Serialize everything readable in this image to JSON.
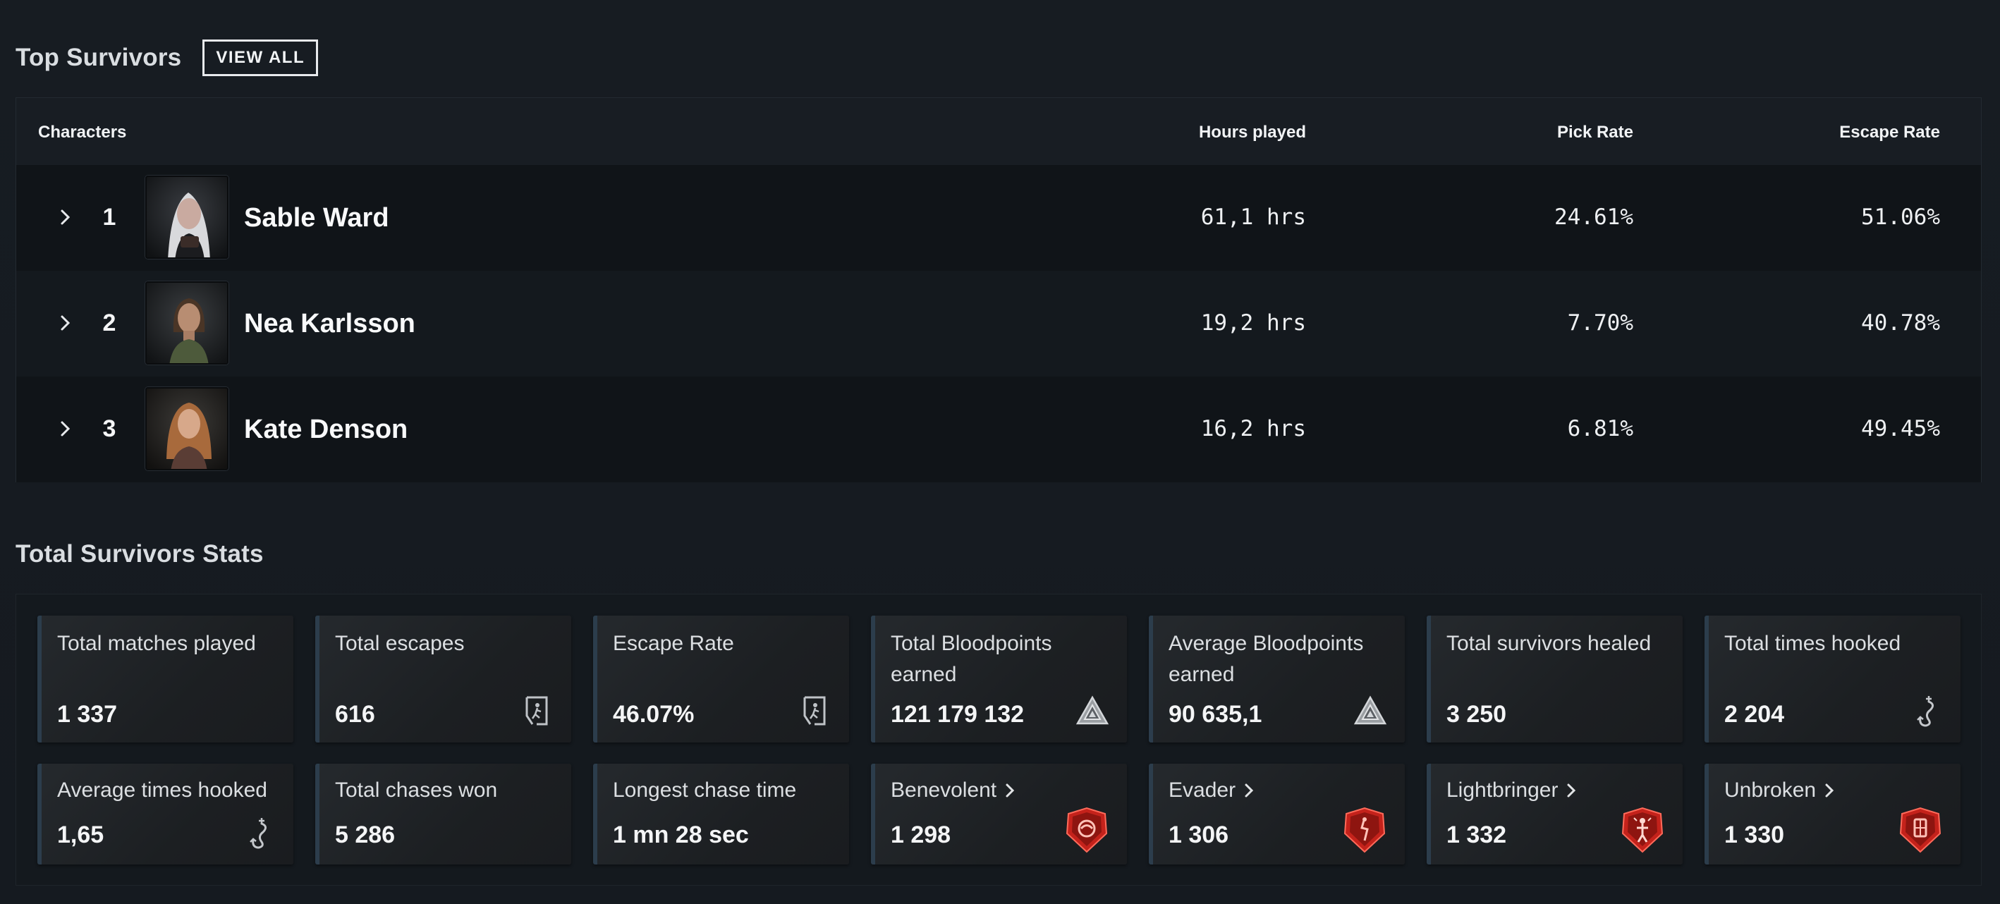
{
  "top_survivors": {
    "title": "Top Survivors",
    "view_all_label": "VIEW ALL",
    "columns": {
      "characters": "Characters",
      "hours": "Hours played",
      "pick_rate": "Pick Rate",
      "escape_rate": "Escape Rate"
    },
    "rows": [
      {
        "rank": "1",
        "name": "Sable Ward",
        "hours": "61,1 hrs",
        "pick_rate": "24.61%",
        "escape_rate": "51.06%"
      },
      {
        "rank": "2",
        "name": "Nea Karlsson",
        "hours": "19,2 hrs",
        "pick_rate": "7.70%",
        "escape_rate": "40.78%"
      },
      {
        "rank": "3",
        "name": "Kate Denson",
        "hours": "16,2 hrs",
        "pick_rate": "6.81%",
        "escape_rate": "49.45%"
      }
    ]
  },
  "total_stats": {
    "title": "Total Survivors Stats",
    "cards": [
      {
        "label": "Total matches played",
        "value": "1 337",
        "icon": "none"
      },
      {
        "label": "Total escapes",
        "value": "616",
        "icon": "exit-door-icon"
      },
      {
        "label": "Escape Rate",
        "value": "46.07%",
        "icon": "exit-door-icon"
      },
      {
        "label": "Total Bloodpoints earned",
        "value": "121 179 132",
        "icon": "bloodpoints-icon"
      },
      {
        "label": "Average Bloodpoints earned",
        "value": "90 635,1",
        "icon": "bloodpoints-icon"
      },
      {
        "label": "Total survivors healed",
        "value": "3 250",
        "icon": "none"
      },
      {
        "label": "Total times hooked",
        "value": "2 204",
        "icon": "hook-icon"
      },
      {
        "label": "Average times hooked",
        "value": "1,65",
        "icon": "hook-icon"
      },
      {
        "label": "Total chases won",
        "value": "5 286",
        "icon": "none"
      },
      {
        "label": "Longest chase time",
        "value": "1 mn 28 sec",
        "icon": "none"
      },
      {
        "label": "Benevolent",
        "value": "1 298",
        "icon": "benevolent-emblem-icon"
      },
      {
        "label": "Evader",
        "value": "1 306",
        "icon": "evader-emblem-icon"
      },
      {
        "label": "Lightbringer",
        "value": "1 332",
        "icon": "lightbringer-emblem-icon"
      },
      {
        "label": "Unbroken",
        "value": "1 330",
        "icon": "unbroken-emblem-icon"
      }
    ]
  },
  "colors": {
    "background": "#151a20",
    "card_accent": "#2c3d4c",
    "emblem_red": "#c4221b"
  }
}
